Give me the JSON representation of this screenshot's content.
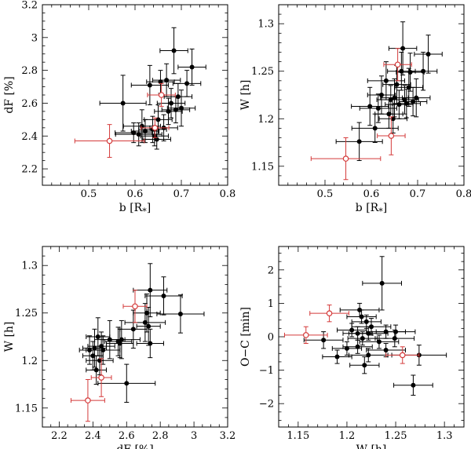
{
  "colors": {
    "black": "#000000",
    "red": "#d43a3a"
  },
  "chart_data": [
    {
      "type": "scatter",
      "id": "p1",
      "xlabel": "b [R",
      "xlabel_sub": "*",
      "xlabel_end": "]",
      "ylabel": "dF [%]",
      "xlim": [
        0.4,
        0.8
      ],
      "ylim": [
        2.1,
        3.2
      ],
      "xticks": [
        0.5,
        0.6,
        0.7,
        0.8
      ],
      "xtick_labels": [
        "0.5",
        "0.6",
        "0.7",
        "0.8"
      ],
      "xminor": 0.02,
      "yticks": [
        2.2,
        2.4,
        2.6,
        2.8,
        3.0,
        3.2
      ],
      "ytick_labels": [
        "2.2",
        "2.4",
        "2.6",
        "2.8",
        "3",
        "3.2"
      ],
      "yminor": 0.05,
      "series": [
        {
          "name": "black filled",
          "color": "#000000",
          "marker": "filled",
          "points": [
            {
              "x": 0.574,
              "y": 2.6,
              "xerr": 0.05,
              "yerr": 0.17
            },
            {
              "x": 0.597,
              "y": 2.42,
              "xerr": 0.04,
              "yerr": 0.06
            },
            {
              "x": 0.608,
              "y": 2.41,
              "xerr": 0.05,
              "yerr": 0.07
            },
            {
              "x": 0.615,
              "y": 2.46,
              "xerr": 0.04,
              "yerr": 0.1
            },
            {
              "x": 0.622,
              "y": 2.43,
              "xerr": 0.03,
              "yerr": 0.07
            },
            {
              "x": 0.632,
              "y": 2.71,
              "xerr": 0.04,
              "yerr": 0.12
            },
            {
              "x": 0.638,
              "y": 2.44,
              "xerr": 0.03,
              "yerr": 0.08
            },
            {
              "x": 0.642,
              "y": 2.4,
              "xerr": 0.03,
              "yerr": 0.06
            },
            {
              "x": 0.647,
              "y": 2.38,
              "xerr": 0.03,
              "yerr": 0.06
            },
            {
              "x": 0.65,
              "y": 2.5,
              "xerr": 0.03,
              "yerr": 0.09
            },
            {
              "x": 0.655,
              "y": 2.73,
              "xerr": 0.03,
              "yerr": 0.07
            },
            {
              "x": 0.662,
              "y": 2.45,
              "xerr": 0.03,
              "yerr": 0.08
            },
            {
              "x": 0.668,
              "y": 2.74,
              "xerr": 0.03,
              "yerr": 0.1
            },
            {
              "x": 0.672,
              "y": 2.55,
              "xerr": 0.03,
              "yerr": 0.08
            },
            {
              "x": 0.678,
              "y": 2.6,
              "xerr": 0.03,
              "yerr": 0.09
            },
            {
              "x": 0.684,
              "y": 2.92,
              "xerr": 0.03,
              "yerr": 0.14
            },
            {
              "x": 0.688,
              "y": 2.56,
              "xerr": 0.03,
              "yerr": 0.08
            },
            {
              "x": 0.693,
              "y": 2.64,
              "xerr": 0.03,
              "yerr": 0.08
            },
            {
              "x": 0.7,
              "y": 2.57,
              "xerr": 0.03,
              "yerr": 0.11
            },
            {
              "x": 0.712,
              "y": 2.72,
              "xerr": 0.03,
              "yerr": 0.08
            },
            {
              "x": 0.723,
              "y": 2.82,
              "xerr": 0.03,
              "yerr": 0.11
            }
          ]
        },
        {
          "name": "red open",
          "color": "#d43a3a",
          "marker": "open",
          "points": [
            {
              "x": 0.545,
              "y": 2.37,
              "xerr": 0.075,
              "yerr": 0.1
            },
            {
              "x": 0.643,
              "y": 2.45,
              "xerr": 0.03,
              "yerr": 0.06
            },
            {
              "x": 0.657,
              "y": 2.65,
              "xerr": 0.03,
              "yerr": 0.07
            }
          ]
        }
      ]
    },
    {
      "type": "scatter",
      "id": "p2",
      "xlabel": "b [R",
      "xlabel_sub": "*",
      "xlabel_end": "]",
      "ylabel": "W [h]",
      "xlim": [
        0.4,
        0.8
      ],
      "ylim": [
        1.13,
        1.32
      ],
      "xticks": [
        0.5,
        0.6,
        0.7,
        0.8
      ],
      "xtick_labels": [
        "0.5",
        "0.6",
        "0.7",
        "0.8"
      ],
      "xminor": 0.02,
      "yticks": [
        1.15,
        1.2,
        1.25,
        1.3
      ],
      "ytick_labels": [
        "1.15",
        "1.2",
        "1.25",
        "1.3"
      ],
      "yminor": 0.01,
      "series": [
        {
          "name": "black filled",
          "color": "#000000",
          "marker": "filled",
          "points": [
            {
              "x": 0.574,
              "y": 1.176,
              "xerr": 0.05,
              "yerr": 0.02
            },
            {
              "x": 0.597,
              "y": 1.213,
              "xerr": 0.04,
              "yerr": 0.02
            },
            {
              "x": 0.608,
              "y": 1.19,
              "xerr": 0.05,
              "yerr": 0.015
            },
            {
              "x": 0.615,
              "y": 1.211,
              "xerr": 0.04,
              "yerr": 0.015
            },
            {
              "x": 0.622,
              "y": 1.225,
              "xerr": 0.03,
              "yerr": 0.02
            },
            {
              "x": 0.632,
              "y": 1.24,
              "xerr": 0.04,
              "yerr": 0.02
            },
            {
              "x": 0.638,
              "y": 1.205,
              "xerr": 0.03,
              "yerr": 0.015
            },
            {
              "x": 0.642,
              "y": 1.22,
              "xerr": 0.03,
              "yerr": 0.015
            },
            {
              "x": 0.647,
              "y": 1.2,
              "xerr": 0.03,
              "yerr": 0.015
            },
            {
              "x": 0.65,
              "y": 1.222,
              "xerr": 0.03,
              "yerr": 0.02
            },
            {
              "x": 0.655,
              "y": 1.236,
              "xerr": 0.03,
              "yerr": 0.02
            },
            {
              "x": 0.66,
              "y": 1.215,
              "xerr": 0.03,
              "yerr": 0.015
            },
            {
              "x": 0.665,
              "y": 1.25,
              "xerr": 0.03,
              "yerr": 0.02
            },
            {
              "x": 0.668,
              "y": 1.274,
              "xerr": 0.03,
              "yerr": 0.028
            },
            {
              "x": 0.672,
              "y": 1.22,
              "xerr": 0.03,
              "yerr": 0.015
            },
            {
              "x": 0.676,
              "y": 1.216,
              "xerr": 0.03,
              "yerr": 0.015
            },
            {
              "x": 0.681,
              "y": 1.233,
              "xerr": 0.03,
              "yerr": 0.02
            },
            {
              "x": 0.684,
              "y": 1.249,
              "xerr": 0.03,
              "yerr": 0.02
            },
            {
              "x": 0.69,
              "y": 1.218,
              "xerr": 0.03,
              "yerr": 0.015
            },
            {
              "x": 0.697,
              "y": 1.222,
              "xerr": 0.03,
              "yerr": 0.02
            },
            {
              "x": 0.712,
              "y": 1.25,
              "xerr": 0.03,
              "yerr": 0.02
            },
            {
              "x": 0.723,
              "y": 1.268,
              "xerr": 0.03,
              "yerr": 0.02
            }
          ]
        },
        {
          "name": "red open",
          "color": "#d43a3a",
          "marker": "open",
          "points": [
            {
              "x": 0.545,
              "y": 1.158,
              "xerr": 0.075,
              "yerr": 0.022
            },
            {
              "x": 0.643,
              "y": 1.182,
              "xerr": 0.03,
              "yerr": 0.02
            },
            {
              "x": 0.657,
              "y": 1.257,
              "xerr": 0.03,
              "yerr": 0.017
            }
          ]
        }
      ]
    },
    {
      "type": "scatter",
      "id": "p3",
      "xlabel": "dF [%]",
      "xlabel_sub": "",
      "xlabel_end": "",
      "ylabel": "W [h]",
      "xlim": [
        2.1,
        3.2
      ],
      "ylim": [
        1.13,
        1.32
      ],
      "xticks": [
        2.2,
        2.4,
        2.6,
        2.8,
        3.0,
        3.2
      ],
      "xtick_labels": [
        "2.2",
        "2.4",
        "2.6",
        "2.8",
        "3",
        "3.2"
      ],
      "xminor": 0.05,
      "yticks": [
        1.15,
        1.2,
        1.25,
        1.3
      ],
      "ytick_labels": [
        "1.15",
        "1.2",
        "1.25",
        "1.3"
      ],
      "yminor": 0.01,
      "series": [
        {
          "name": "black filled",
          "color": "#000000",
          "marker": "filled",
          "points": [
            {
              "x": 2.38,
              "y": 1.211,
              "xerr": 0.06,
              "yerr": 0.015
            },
            {
              "x": 2.4,
              "y": 1.205,
              "xerr": 0.06,
              "yerr": 0.015
            },
            {
              "x": 2.41,
              "y": 1.213,
              "xerr": 0.07,
              "yerr": 0.02
            },
            {
              "x": 2.42,
              "y": 1.19,
              "xerr": 0.06,
              "yerr": 0.015
            },
            {
              "x": 2.43,
              "y": 1.225,
              "xerr": 0.07,
              "yerr": 0.02
            },
            {
              "x": 2.44,
              "y": 1.2,
              "xerr": 0.08,
              "yerr": 0.015
            },
            {
              "x": 2.45,
              "y": 1.215,
              "xerr": 0.08,
              "yerr": 0.015
            },
            {
              "x": 2.46,
              "y": 1.211,
              "xerr": 0.1,
              "yerr": 0.015
            },
            {
              "x": 2.5,
              "y": 1.222,
              "xerr": 0.09,
              "yerr": 0.02
            },
            {
              "x": 2.55,
              "y": 1.22,
              "xerr": 0.08,
              "yerr": 0.015
            },
            {
              "x": 2.56,
              "y": 1.218,
              "xerr": 0.08,
              "yerr": 0.015
            },
            {
              "x": 2.57,
              "y": 1.222,
              "xerr": 0.11,
              "yerr": 0.02
            },
            {
              "x": 2.6,
              "y": 1.176,
              "xerr": 0.17,
              "yerr": 0.02
            },
            {
              "x": 2.64,
              "y": 1.233,
              "xerr": 0.08,
              "yerr": 0.02
            },
            {
              "x": 2.71,
              "y": 1.24,
              "xerr": 0.12,
              "yerr": 0.02
            },
            {
              "x": 2.72,
              "y": 1.25,
              "xerr": 0.08,
              "yerr": 0.02
            },
            {
              "x": 2.73,
              "y": 1.236,
              "xerr": 0.07,
              "yerr": 0.02
            },
            {
              "x": 2.74,
              "y": 1.274,
              "xerr": 0.1,
              "yerr": 0.028
            },
            {
              "x": 2.74,
              "y": 1.218,
              "xerr": 0.08,
              "yerr": 0.015
            },
            {
              "x": 2.82,
              "y": 1.268,
              "xerr": 0.11,
              "yerr": 0.02
            },
            {
              "x": 2.92,
              "y": 1.249,
              "xerr": 0.14,
              "yerr": 0.02
            }
          ]
        },
        {
          "name": "red open",
          "color": "#d43a3a",
          "marker": "open",
          "points": [
            {
              "x": 2.37,
              "y": 1.158,
              "xerr": 0.1,
              "yerr": 0.022
            },
            {
              "x": 2.45,
              "y": 1.182,
              "xerr": 0.06,
              "yerr": 0.02
            },
            {
              "x": 2.65,
              "y": 1.257,
              "xerr": 0.07,
              "yerr": 0.017
            }
          ]
        }
      ]
    },
    {
      "type": "scatter",
      "id": "p4",
      "xlabel": "W [h]",
      "xlabel_sub": "",
      "xlabel_end": "",
      "ylabel": "O−C [min]",
      "xlim": [
        1.13,
        1.32
      ],
      "ylim": [
        -2.7,
        2.7
      ],
      "xticks": [
        1.15,
        1.2,
        1.25,
        1.3
      ],
      "xtick_labels": [
        "1.15",
        "1.2",
        "1.25",
        "1.3"
      ],
      "xminor": 0.01,
      "yticks": [
        -2,
        -1,
        0,
        1,
        2
      ],
      "ytick_labels": [
        "−2",
        "−1",
        "0",
        "1",
        "2"
      ],
      "yminor": 0.25,
      "series": [
        {
          "name": "black filled",
          "color": "#000000",
          "marker": "filled",
          "points": [
            {
              "x": 1.176,
              "y": -0.1,
              "xerr": 0.02,
              "yerr": 0.25
            },
            {
              "x": 1.19,
              "y": -0.6,
              "xerr": 0.015,
              "yerr": 0.2
            },
            {
              "x": 1.2,
              "y": -0.35,
              "xerr": 0.015,
              "yerr": 0.2
            },
            {
              "x": 1.205,
              "y": 0.2,
              "xerr": 0.015,
              "yerr": 0.2
            },
            {
              "x": 1.211,
              "y": 0.1,
              "xerr": 0.015,
              "yerr": 0.2
            },
            {
              "x": 1.211,
              "y": -0.3,
              "xerr": 0.015,
              "yerr": 0.2
            },
            {
              "x": 1.213,
              "y": 0.8,
              "xerr": 0.02,
              "yerr": 0.2
            },
            {
              "x": 1.215,
              "y": 0.6,
              "xerr": 0.015,
              "yerr": 0.2
            },
            {
              "x": 1.216,
              "y": -0.05,
              "xerr": 0.015,
              "yerr": 0.2
            },
            {
              "x": 1.218,
              "y": -0.85,
              "xerr": 0.015,
              "yerr": 0.25
            },
            {
              "x": 1.22,
              "y": 0.45,
              "xerr": 0.015,
              "yerr": 0.2
            },
            {
              "x": 1.222,
              "y": 0.1,
              "xerr": 0.02,
              "yerr": 0.2
            },
            {
              "x": 1.222,
              "y": -0.55,
              "xerr": 0.02,
              "yerr": 0.2
            },
            {
              "x": 1.225,
              "y": 0.3,
              "xerr": 0.02,
              "yerr": 0.25
            },
            {
              "x": 1.233,
              "y": -0.15,
              "xerr": 0.02,
              "yerr": 0.2
            },
            {
              "x": 1.236,
              "y": 1.6,
              "xerr": 0.02,
              "yerr": 0.8
            },
            {
              "x": 1.24,
              "y": 0.15,
              "xerr": 0.02,
              "yerr": 0.2
            },
            {
              "x": 1.24,
              "y": -0.4,
              "xerr": 0.02,
              "yerr": 0.2
            },
            {
              "x": 1.249,
              "y": -0.05,
              "xerr": 0.02,
              "yerr": 0.25
            },
            {
              "x": 1.25,
              "y": 0.15,
              "xerr": 0.02,
              "yerr": 0.2
            },
            {
              "x": 1.268,
              "y": -1.45,
              "xerr": 0.02,
              "yerr": 0.3
            },
            {
              "x": 1.274,
              "y": -0.55,
              "xerr": 0.028,
              "yerr": 0.3
            }
          ]
        },
        {
          "name": "red open",
          "color": "#d43a3a",
          "marker": "open",
          "points": [
            {
              "x": 1.158,
              "y": 0.05,
              "xerr": 0.022,
              "yerr": 0.25
            },
            {
              "x": 1.182,
              "y": 0.7,
              "xerr": 0.02,
              "yerr": 0.25
            },
            {
              "x": 1.257,
              "y": -0.55,
              "xerr": 0.017,
              "yerr": 0.25
            }
          ]
        }
      ]
    }
  ]
}
